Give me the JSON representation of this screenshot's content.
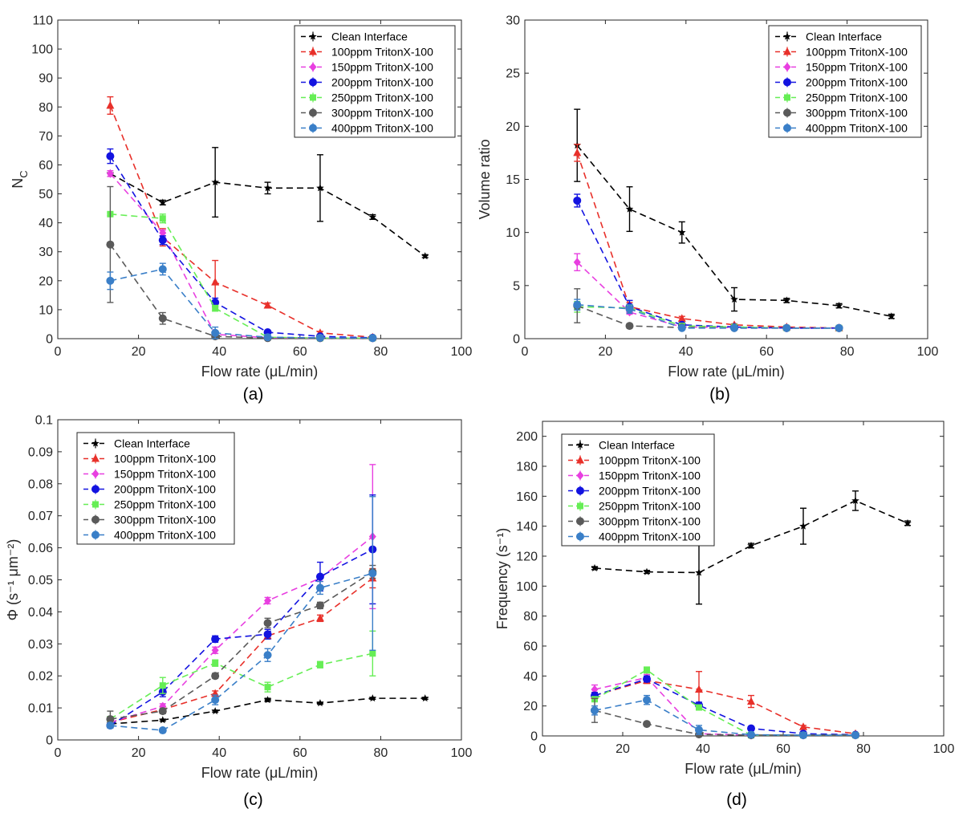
{
  "series_colors": {
    "Clean Interface": "#000000",
    "100ppm TritonX-100": "#e8302a",
    "150ppm TritonX-100": "#e83fe0",
    "200ppm TritonX-100": "#1313e0",
    "250ppm TritonX-100": "#66ee55",
    "300ppm TritonX-100": "#5a5a5a",
    "400ppm TritonX-100": "#3a7fc8"
  },
  "chart_data": [
    {
      "type": "line",
      "panel": "(a)",
      "xlabel": "Flow rate (μL/min)",
      "ylabel": "N",
      "ylabel_sub": "C",
      "xlim": [
        0,
        100
      ],
      "ylim": [
        0,
        110
      ],
      "xticks": [
        "0",
        "20",
        "40",
        "60",
        "80",
        "100"
      ],
      "yticks": [
        "0",
        "10",
        "20",
        "30",
        "40",
        "50",
        "60",
        "70",
        "80",
        "90",
        "100",
        "110"
      ],
      "legend_position": "top-right",
      "series": [
        {
          "name": "Clean Interface",
          "marker": "star",
          "x": [
            13,
            26,
            39,
            52,
            65,
            78,
            91
          ],
          "y": [
            57,
            47,
            54,
            52,
            52,
            42,
            28.5
          ],
          "err": [
            0,
            0.8,
            12,
            2,
            11.5,
            0.8,
            0.5
          ]
        },
        {
          "name": "100ppm TritonX-100",
          "marker": "triangle",
          "x": [
            13,
            26,
            39,
            52,
            65,
            78
          ],
          "y": [
            80.5,
            35,
            19.5,
            11.5,
            2,
            0.5
          ],
          "err": [
            3,
            3,
            7.5,
            0.8,
            0.5,
            0.3
          ]
        },
        {
          "name": "150ppm TritonX-100",
          "marker": "diamond",
          "x": [
            13,
            26,
            39,
            52,
            65,
            78
          ],
          "y": [
            57,
            36.5,
            1.5,
            0.3,
            0.2,
            0.2
          ],
          "err": [
            1,
            1,
            0.5,
            0.2,
            0.2,
            0.2
          ]
        },
        {
          "name": "200ppm TritonX-100",
          "marker": "circle",
          "x": [
            13,
            26,
            39,
            52,
            65,
            78
          ],
          "y": [
            63,
            34,
            12.5,
            2.2,
            0.8,
            0.3
          ],
          "err": [
            2.5,
            1.5,
            1.5,
            0.5,
            0.3,
            0.2
          ]
        },
        {
          "name": "250ppm TritonX-100",
          "marker": "square",
          "x": [
            13,
            26,
            39,
            52,
            65,
            78
          ],
          "y": [
            43,
            41.5,
            10.5,
            0.5,
            0.2,
            0.2
          ],
          "err": [
            0.5,
            1.5,
            1,
            0.2,
            0.2,
            0.2
          ]
        },
        {
          "name": "300ppm TritonX-100",
          "marker": "circle",
          "x": [
            13,
            26,
            39,
            52,
            65,
            78
          ],
          "y": [
            32.5,
            7,
            0.8,
            0.2,
            0.2,
            0.2
          ],
          "err": [
            20,
            2,
            0.5,
            0.2,
            0.2,
            0.2
          ]
        },
        {
          "name": "400ppm TritonX-100",
          "marker": "circle",
          "x": [
            13,
            26,
            39,
            52,
            65,
            78
          ],
          "y": [
            20,
            24,
            2,
            0.5,
            0.3,
            0.2
          ],
          "err": [
            3,
            2,
            2,
            0.3,
            0.2,
            0.2
          ]
        }
      ]
    },
    {
      "type": "line",
      "panel": "(b)",
      "xlabel": "Flow rate (μL/min)",
      "ylabel": "Volume ratio",
      "ylabel_sub": "",
      "xlim": [
        0,
        100
      ],
      "ylim": [
        0,
        30
      ],
      "xticks": [
        "0",
        "20",
        "40",
        "60",
        "80",
        "100"
      ],
      "yticks": [
        "0",
        "5",
        "10",
        "15",
        "20",
        "25",
        "30"
      ],
      "legend_position": "top-right",
      "series": [
        {
          "name": "Clean Interface",
          "marker": "star",
          "x": [
            13,
            26,
            39,
            52,
            65,
            78,
            91
          ],
          "y": [
            18.2,
            12.2,
            10,
            3.7,
            3.6,
            3.1,
            2.1
          ],
          "err": [
            3.4,
            2.1,
            1,
            1.1,
            0.2,
            0.2,
            0.2
          ]
        },
        {
          "name": "100ppm TritonX-100",
          "marker": "triangle",
          "x": [
            13,
            26,
            39,
            52,
            65,
            78
          ],
          "y": [
            17.5,
            3,
            1.9,
            1.3,
            1.1,
            1
          ],
          "err": [
            0.8,
            0.4,
            0.2,
            0.1,
            0.1,
            0.1
          ]
        },
        {
          "name": "150ppm TritonX-100",
          "marker": "diamond",
          "x": [
            13,
            26,
            39,
            52,
            65,
            78
          ],
          "y": [
            7.2,
            2.5,
            1.1,
            1.05,
            1,
            1
          ],
          "err": [
            0.8,
            0.2,
            0.1,
            0.1,
            0.1,
            0.1
          ]
        },
        {
          "name": "200ppm TritonX-100",
          "marker": "circle",
          "x": [
            13,
            26,
            39,
            52,
            65,
            78
          ],
          "y": [
            13,
            3,
            1.3,
            1.1,
            1,
            1
          ],
          "err": [
            0.6,
            0.6,
            0.2,
            0.1,
            0.1,
            0.1
          ]
        },
        {
          "name": "250ppm TritonX-100",
          "marker": "square",
          "x": [
            13,
            26,
            39,
            52,
            65,
            78
          ],
          "y": [
            3,
            2.9,
            1.2,
            1.1,
            1,
            1
          ],
          "err": [
            0.5,
            0.3,
            0.2,
            0.1,
            0.1,
            0.1
          ]
        },
        {
          "name": "300ppm TritonX-100",
          "marker": "circle",
          "x": [
            13,
            26,
            39,
            52,
            65,
            78
          ],
          "y": [
            3.1,
            1.2,
            1.05,
            1,
            1,
            1
          ],
          "err": [
            1.6,
            0.2,
            0.1,
            0.1,
            0.1,
            0.1
          ]
        },
        {
          "name": "400ppm TritonX-100",
          "marker": "circle",
          "x": [
            13,
            26,
            39,
            52,
            65,
            78
          ],
          "y": [
            3.2,
            2.8,
            1,
            1,
            1,
            1
          ],
          "err": [
            0.5,
            0.4,
            0.1,
            0.1,
            0.1,
            0.1
          ]
        }
      ]
    },
    {
      "type": "line",
      "panel": "(c)",
      "xlabel": "Flow rate (μL/min)",
      "ylabel": "Φ (s⁻¹ μm⁻²)",
      "ylabel_sub": "",
      "xlim": [
        0,
        100
      ],
      "ylim": [
        0,
        0.1
      ],
      "xticks": [
        "0",
        "20",
        "40",
        "60",
        "80",
        "100"
      ],
      "yticks": [
        "0",
        "0.01",
        "0.02",
        "0.03",
        "0.04",
        "0.05",
        "0.06",
        "0.07",
        "0.08",
        "0.09",
        "0.1"
      ],
      "legend_position": "top-left",
      "series": [
        {
          "name": "Clean Interface",
          "marker": "star",
          "x": [
            13,
            26,
            39,
            52,
            65,
            78,
            91
          ],
          "y": [
            0.005,
            0.0062,
            0.009,
            0.0125,
            0.0115,
            0.013,
            0.013
          ],
          "err": [
            0.0003,
            0.0003,
            0.0003,
            0.0005,
            0.0003,
            0.0003,
            0.0003
          ]
        },
        {
          "name": "100ppm TritonX-100",
          "marker": "triangle",
          "x": [
            13,
            26,
            39,
            52,
            65,
            78
          ],
          "y": [
            0.0055,
            0.0095,
            0.0145,
            0.0325,
            0.038,
            0.0505
          ],
          "err": [
            0.0005,
            0.0008,
            0.0008,
            0.001,
            0.001,
            0.003
          ]
        },
        {
          "name": "150ppm TritonX-100",
          "marker": "diamond",
          "x": [
            13,
            26,
            39,
            52,
            65,
            78
          ],
          "y": [
            0.0055,
            0.0105,
            0.028,
            0.0435,
            0.0505,
            0.0635
          ],
          "err": [
            0.0005,
            0.0008,
            0.001,
            0.001,
            0.001,
            0.0225
          ]
        },
        {
          "name": "200ppm TritonX-100",
          "marker": "circle",
          "x": [
            13,
            26,
            39,
            52,
            65,
            78
          ],
          "y": [
            0.0045,
            0.015,
            0.0315,
            0.033,
            0.051,
            0.0595
          ],
          "err": [
            0.0005,
            0.0015,
            0.001,
            0.0015,
            0.0045,
            0.017
          ]
        },
        {
          "name": "250ppm TritonX-100",
          "marker": "square",
          "x": [
            13,
            26,
            39,
            52,
            65,
            78
          ],
          "y": [
            0.0065,
            0.017,
            0.024,
            0.0165,
            0.0235,
            0.027
          ],
          "err": [
            0.0008,
            0.0025,
            0.001,
            0.0015,
            0.001,
            0.007
          ]
        },
        {
          "name": "300ppm TritonX-100",
          "marker": "circle",
          "x": [
            13,
            26,
            39,
            52,
            65,
            78
          ],
          "y": [
            0.0065,
            0.009,
            0.02,
            0.0365,
            0.042,
            0.0525
          ],
          "err": [
            0.0025,
            0.0008,
            0.0008,
            0.0015,
            0.001,
            0.002
          ]
        },
        {
          "name": "400ppm TritonX-100",
          "marker": "circle",
          "x": [
            13,
            26,
            39,
            52,
            65,
            78
          ],
          "y": [
            0.0045,
            0.003,
            0.0125,
            0.0265,
            0.0475,
            0.052
          ],
          "err": [
            0.0008,
            0.0005,
            0.0015,
            0.002,
            0.002,
            0.024
          ]
        }
      ]
    },
    {
      "type": "line",
      "panel": "(d)",
      "xlabel": "Flow rate (μL/min)",
      "ylabel": "Frequency (s⁻¹)",
      "ylabel_sub": "",
      "xlim": [
        0,
        100
      ],
      "ylim": [
        0,
        210
      ],
      "xticks": [
        "0",
        "20",
        "40",
        "60",
        "80",
        "100"
      ],
      "yticks": [
        "0",
        "20",
        "40",
        "60",
        "80",
        "100",
        "120",
        "140",
        "160",
        "180",
        "200"
      ],
      "legend_position": "top-left",
      "series": [
        {
          "name": "Clean Interface",
          "marker": "star",
          "x": [
            13,
            26,
            39,
            52,
            65,
            78,
            91
          ],
          "y": [
            112,
            109.5,
            109,
            127,
            140,
            157,
            142
          ],
          "err": [
            1,
            1,
            21,
            1.5,
            12,
            6.5,
            1.5
          ]
        },
        {
          "name": "100ppm TritonX-100",
          "marker": "triangle",
          "x": [
            13,
            26,
            39,
            52,
            65,
            78
          ],
          "y": [
            27,
            37,
            31,
            23,
            6,
            1.5
          ],
          "err": [
            2,
            2,
            12,
            4,
            1,
            0.5
          ]
        },
        {
          "name": "150ppm TritonX-100",
          "marker": "diamond",
          "x": [
            13,
            26,
            39,
            52,
            65,
            78
          ],
          "y": [
            31,
            39,
            1.5,
            0.5,
            0.5,
            0.5
          ],
          "err": [
            3,
            2,
            0.5,
            0.5,
            0.5,
            0.5
          ]
        },
        {
          "name": "200ppm TritonX-100",
          "marker": "circle",
          "x": [
            13,
            26,
            39,
            52,
            65,
            78
          ],
          "y": [
            27,
            38,
            20.5,
            5,
            1.5,
            0.8
          ],
          "err": [
            2,
            2,
            2,
            0.8,
            0.5,
            0.5
          ]
        },
        {
          "name": "250ppm TritonX-100",
          "marker": "square",
          "x": [
            13,
            26,
            39,
            52,
            65,
            78
          ],
          "y": [
            24.5,
            44,
            19,
            0.5,
            0.5,
            0.5
          ],
          "err": [
            1.5,
            2,
            1,
            0.5,
            0.5,
            0.5
          ]
        },
        {
          "name": "300ppm TritonX-100",
          "marker": "circle",
          "x": [
            13,
            26,
            39,
            52,
            65,
            78
          ],
          "y": [
            17,
            8,
            1,
            0.5,
            0.5,
            0.5
          ],
          "err": [
            8,
            1,
            0.5,
            0.5,
            0.5,
            0.5
          ]
        },
        {
          "name": "400ppm TritonX-100",
          "marker": "circle",
          "x": [
            13,
            26,
            39,
            52,
            65,
            78
          ],
          "y": [
            17,
            24,
            4,
            0.8,
            0.5,
            0.5
          ],
          "err": [
            3,
            3,
            3,
            0.5,
            0.5,
            0.5
          ]
        }
      ]
    }
  ]
}
